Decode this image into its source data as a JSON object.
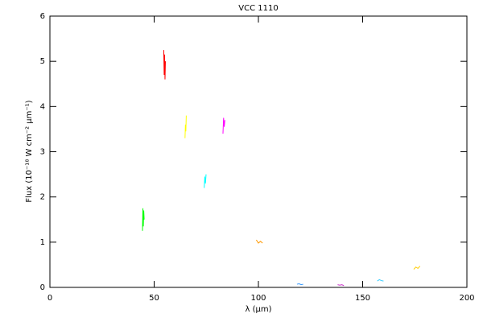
{
  "chart_data": {
    "type": "line",
    "title": "VCC 1110",
    "x_label": "λ (μm)",
    "y_label": "Flux (10⁻¹⁸ W cm⁻² μm⁻¹)",
    "xlim": [
      0,
      200
    ],
    "xticks": [
      0,
      50,
      100,
      150,
      200
    ],
    "ylim": [
      0,
      6
    ],
    "yticks": [
      0,
      1,
      2,
      3,
      4,
      5,
      6
    ],
    "series": [
      {
        "color": "#00ff00",
        "x": [
          44.4,
          44.6,
          44.8,
          45.0,
          45.2
        ],
        "values": [
          1.25,
          1.75,
          1.35,
          1.7,
          1.5
        ]
      },
      {
        "color": "#ff0000",
        "x": [
          54.6,
          54.8,
          55.0,
          55.2,
          55.4
        ],
        "values": [
          5.25,
          4.7,
          5.15,
          4.6,
          5.0
        ]
      },
      {
        "color": "#ffff00",
        "x": [
          64.8,
          65.0,
          65.2,
          65.4
        ],
        "values": [
          3.3,
          3.6,
          3.45,
          3.8
        ]
      },
      {
        "color": "#00ffff",
        "x": [
          74.0,
          74.3,
          74.6,
          74.9
        ],
        "values": [
          2.2,
          2.45,
          2.3,
          2.5
        ]
      },
      {
        "color": "#ff00ff",
        "x": [
          83.0,
          83.3,
          83.6,
          83.9
        ],
        "values": [
          3.4,
          3.75,
          3.55,
          3.7
        ]
      },
      {
        "color": "#ff9900",
        "x": [
          99.0,
          100.0,
          101.0,
          102.0
        ],
        "values": [
          1.05,
          0.98,
          1.02,
          0.98
        ]
      },
      {
        "color": "#3399ff",
        "x": [
          118.5,
          119.5,
          120.5,
          121.5
        ],
        "values": [
          0.07,
          0.08,
          0.06,
          0.07
        ]
      },
      {
        "color": "#cc33cc",
        "x": [
          138.0,
          139.0,
          140.0,
          141.0
        ],
        "values": [
          0.06,
          0.05,
          0.06,
          0.04
        ]
      },
      {
        "color": "#33ccff",
        "x": [
          157.0,
          158.0,
          159.0,
          160.0
        ],
        "values": [
          0.14,
          0.17,
          0.15,
          0.14
        ]
      },
      {
        "color": "#ffcc00",
        "x": [
          174.5,
          175.5,
          176.5,
          177.5
        ],
        "values": [
          0.4,
          0.45,
          0.42,
          0.47
        ]
      }
    ]
  }
}
